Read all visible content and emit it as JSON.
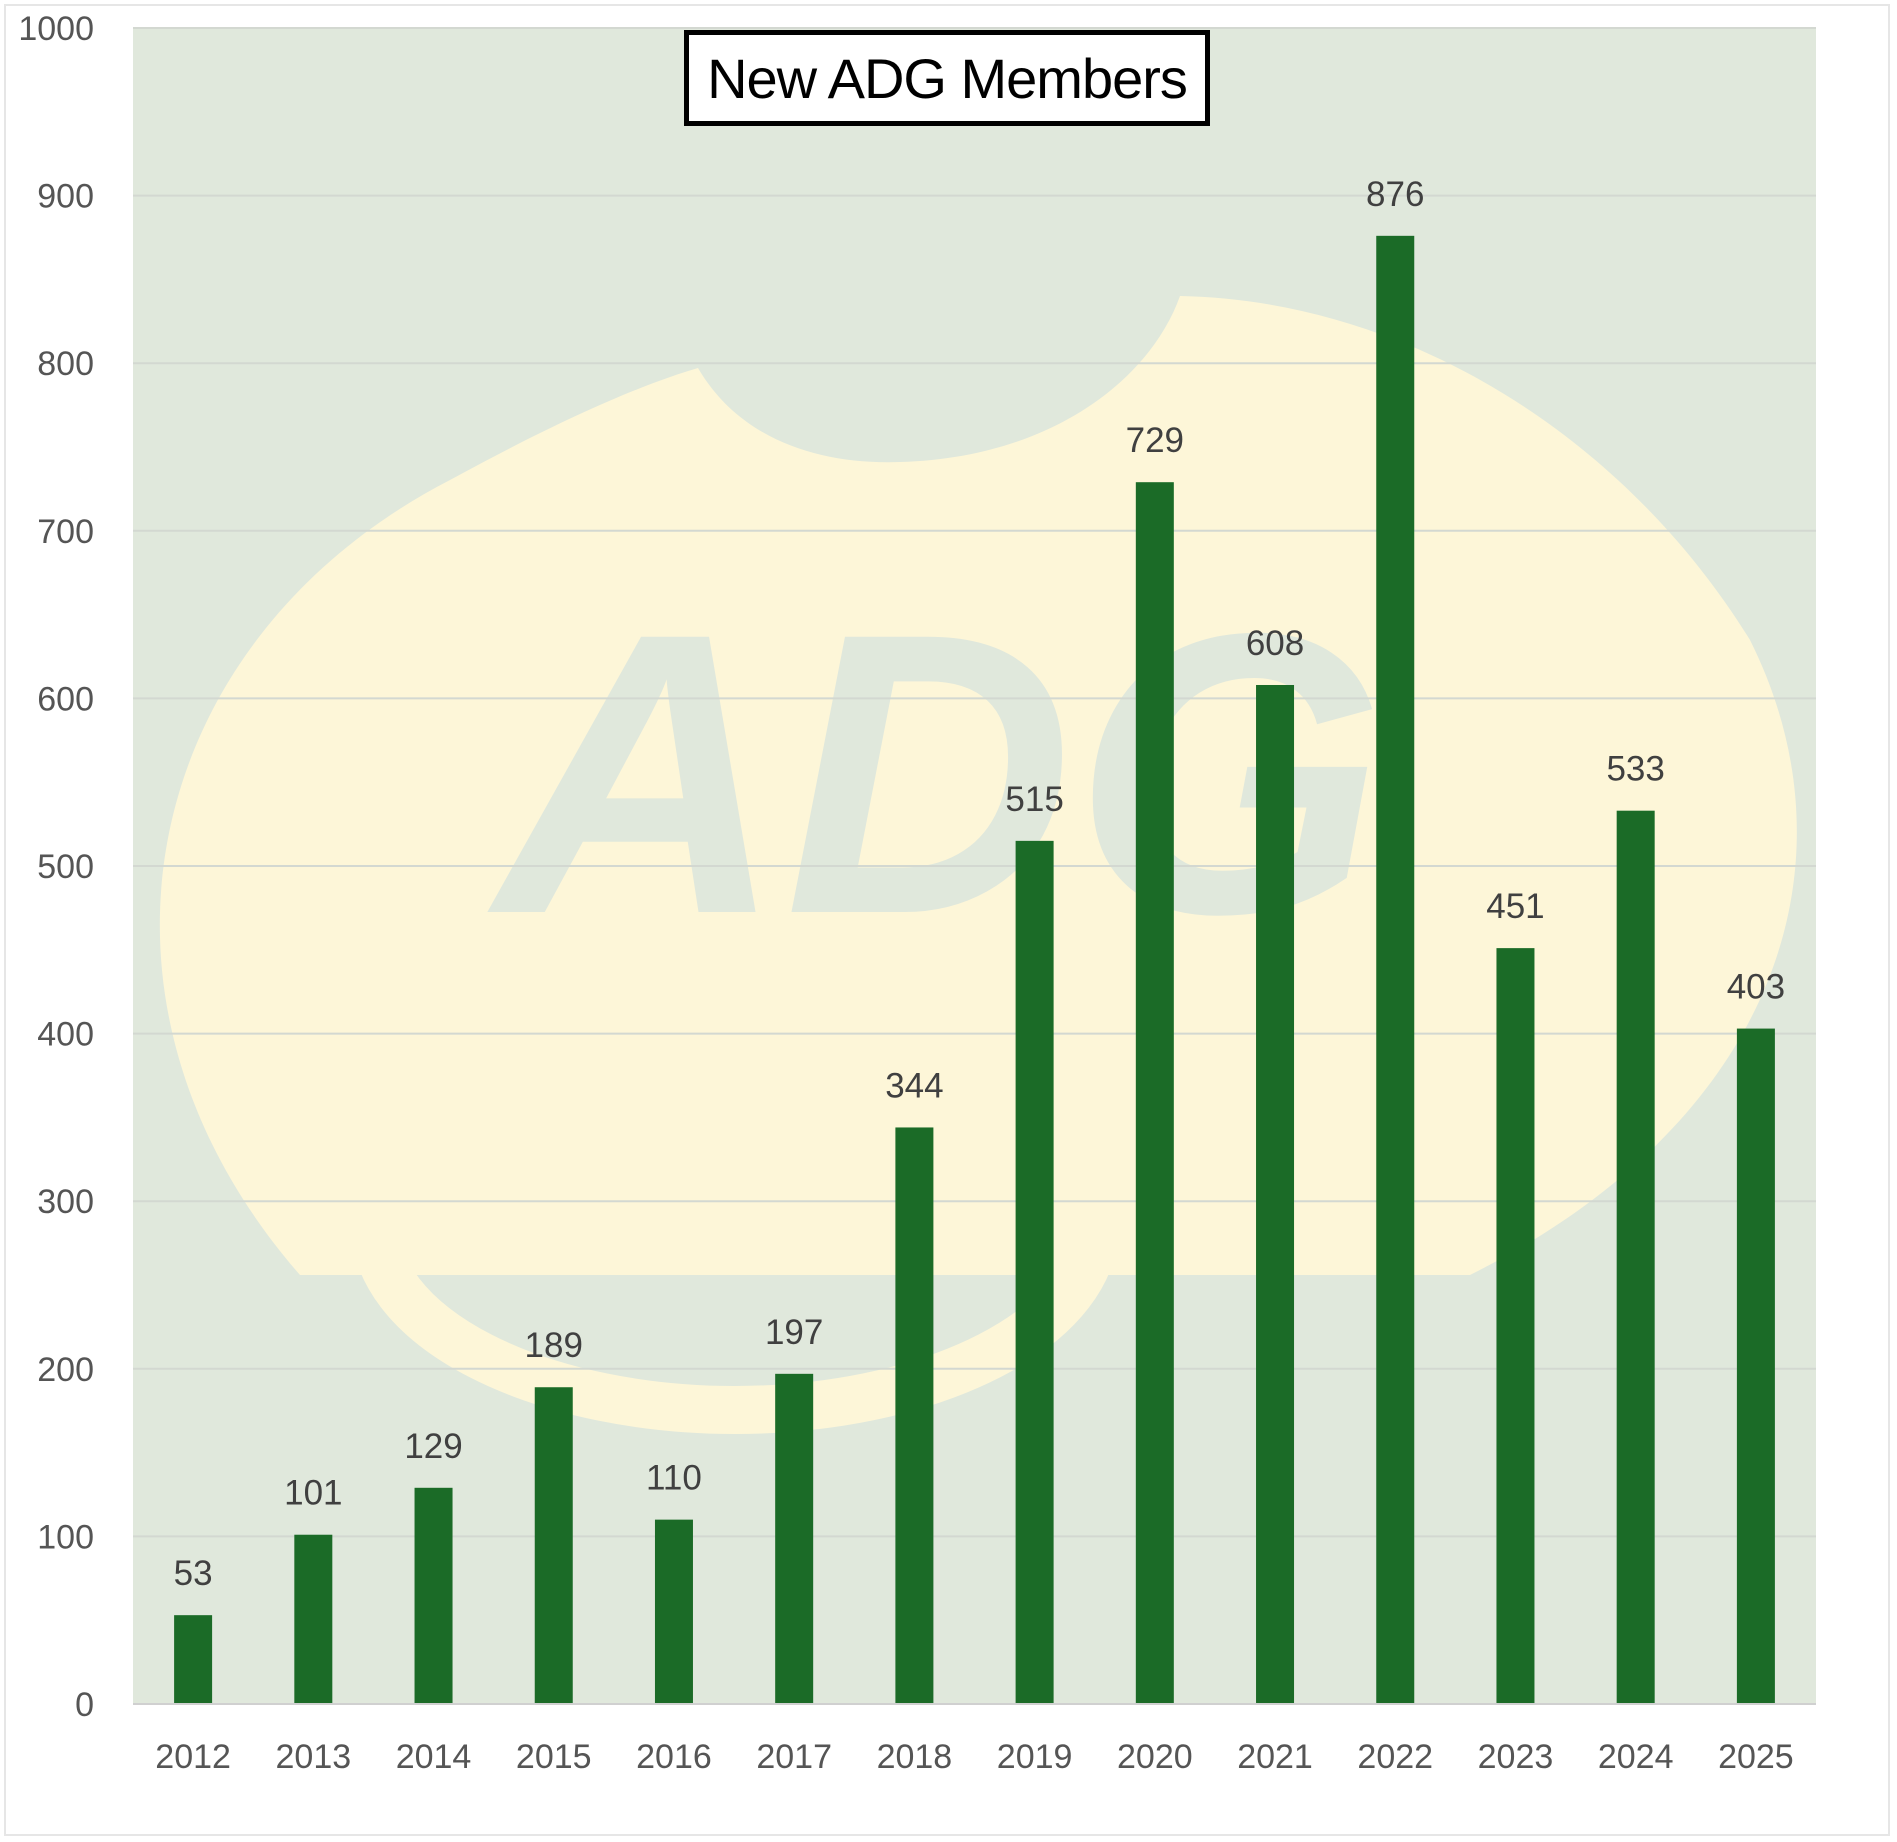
{
  "chart_data": {
    "type": "bar",
    "title": "New ADG Members",
    "xlabel": "",
    "ylabel": "",
    "categories": [
      "2012",
      "2013",
      "2014",
      "2015",
      "2016",
      "2017",
      "2018",
      "2019",
      "2020",
      "2021",
      "2022",
      "2023",
      "2024",
      "2025"
    ],
    "values": [
      53,
      101,
      129,
      189,
      110,
      197,
      344,
      515,
      729,
      608,
      876,
      451,
      533,
      403
    ],
    "ylim": [
      0,
      1000
    ],
    "yticks": [
      0,
      100,
      200,
      300,
      400,
      500,
      600,
      700,
      800,
      900,
      1000
    ],
    "grid": true,
    "legend": "none",
    "data_labels": true,
    "colors": {
      "bar": "#1b6b27",
      "plot_background": "#e0e8dc",
      "watermark": "#fdf6d8",
      "gridline": "#d3d8d1"
    },
    "watermark_logo": "ADG"
  }
}
